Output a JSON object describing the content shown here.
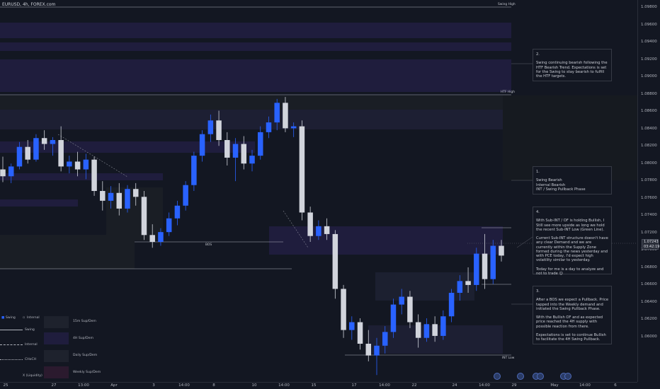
{
  "symbol": "EURUSD, 4h, FOREX.com",
  "price_axis": {
    "ticks": [
      "1.09800",
      "1.09600",
      "1.09400",
      "1.09200",
      "1.09000",
      "1.08800",
      "1.08600",
      "1.08400",
      "1.08200",
      "1.08000",
      "1.07800",
      "1.07600",
      "1.07400",
      "1.07200",
      "1.07000",
      "1.06800",
      "1.06600",
      "1.06400",
      "1.06200",
      "1.06000"
    ],
    "current_price": "1.07243",
    "countdown": "03:42:19"
  },
  "time_axis": {
    "ticks": [
      "25",
      "27",
      "13:00",
      "Apr",
      "3",
      "14:00",
      "8",
      "10",
      "14:00",
      "15",
      "17",
      "14:00",
      "22",
      "24",
      "14:00",
      "29",
      "May",
      "14:00",
      "6"
    ]
  },
  "levels": {
    "swing_high": "Swing High",
    "htf_high": "HTF High",
    "int_low": "INT Low",
    "bos": "BOS"
  },
  "notes": [
    {
      "text": "2.\n\nSwing continuing bearish following the HTF Bearish Trend. Expectations is set for the Swing to stay bearish to fulfill the HTF targets."
    },
    {
      "text": "1.\n\nSwing Bearish\nInternal Bearish\nINT / Swing Pullback Phase"
    },
    {
      "text": "4.\n\nWith Sub-INT / OF is holding Bullish, I Still see more upside as long we hold the recent Sub-INT Low (Green Line).\n\nCurrent Sub-INT structure doesn't have any clear Demand and we are currently within the Supply Zone formed during the news yesterday and with PCE today, I'd expect high volatility similar to yesterday.\n\nToday for me is a day to analyze and not to trade 😊"
    },
    {
      "text": "3.\n\nAfter a BOS we expect a Pullback. Price tapped into the Weekly demand and initiated the Swing Pullback Phase.\n\nWith the Bullish OF and as expected price reached the 4H supply with possible reaction from there.\n\nExpectations is set to continue Bullish to facilitate the 4H Swing Pullback."
    }
  ],
  "legend": {
    "left": [
      "Swing",
      "Internal",
      "Swing",
      "Internal",
      "CHoCH",
      "X (Liquidity)"
    ],
    "right": [
      "15m Sup/Dem",
      "4H Sup/Dem",
      "Daily Sup/Dem",
      "Weekly Sup/Dem"
    ]
  },
  "chart_data": {
    "type": "candlestick",
    "ylim": [
      1.0595,
      1.0985
    ],
    "candles": [
      {
        "o": 1.0812,
        "h": 1.0825,
        "l": 1.0799,
        "c": 1.0805
      },
      {
        "o": 1.0805,
        "h": 1.0818,
        "l": 1.0798,
        "c": 1.0815
      },
      {
        "o": 1.0815,
        "h": 1.084,
        "l": 1.0812,
        "c": 1.0835
      },
      {
        "o": 1.0835,
        "h": 1.0842,
        "l": 1.0818,
        "c": 1.0822
      },
      {
        "o": 1.0822,
        "h": 1.0848,
        "l": 1.082,
        "c": 1.0844
      },
      {
        "o": 1.0844,
        "h": 1.0852,
        "l": 1.0832,
        "c": 1.0838
      },
      {
        "o": 1.0838,
        "h": 1.0845,
        "l": 1.0826,
        "c": 1.0842
      },
      {
        "o": 1.0842,
        "h": 1.0856,
        "l": 1.081,
        "c": 1.0815
      },
      {
        "o": 1.0815,
        "h": 1.0826,
        "l": 1.0808,
        "c": 1.082
      },
      {
        "o": 1.082,
        "h": 1.083,
        "l": 1.0805,
        "c": 1.0812
      },
      {
        "o": 1.0812,
        "h": 1.0828,
        "l": 1.0802,
        "c": 1.0822
      },
      {
        "o": 1.0822,
        "h": 1.0825,
        "l": 1.0785,
        "c": 1.079
      },
      {
        "o": 1.079,
        "h": 1.08,
        "l": 1.077,
        "c": 1.078
      },
      {
        "o": 1.078,
        "h": 1.0795,
        "l": 1.0772,
        "c": 1.0788
      },
      {
        "o": 1.0788,
        "h": 1.0798,
        "l": 1.0765,
        "c": 1.0772
      },
      {
        "o": 1.0772,
        "h": 1.0796,
        "l": 1.0768,
        "c": 1.0792
      },
      {
        "o": 1.0792,
        "h": 1.0798,
        "l": 1.0775,
        "c": 1.0784
      },
      {
        "o": 1.0784,
        "h": 1.079,
        "l": 1.074,
        "c": 1.0745
      },
      {
        "o": 1.0745,
        "h": 1.0756,
        "l": 1.0732,
        "c": 1.0738
      },
      {
        "o": 1.0738,
        "h": 1.0752,
        "l": 1.0734,
        "c": 1.0748
      },
      {
        "o": 1.0748,
        "h": 1.0768,
        "l": 1.0744,
        "c": 1.0762
      },
      {
        "o": 1.0762,
        "h": 1.078,
        "l": 1.0755,
        "c": 1.0775
      },
      {
        "o": 1.0775,
        "h": 1.08,
        "l": 1.077,
        "c": 1.0796
      },
      {
        "o": 1.0796,
        "h": 1.083,
        "l": 1.079,
        "c": 1.0826
      },
      {
        "o": 1.0826,
        "h": 1.0852,
        "l": 1.082,
        "c": 1.0848
      },
      {
        "o": 1.0848,
        "h": 1.0868,
        "l": 1.084,
        "c": 1.0862
      },
      {
        "o": 1.0862,
        "h": 1.0872,
        "l": 1.0836,
        "c": 1.0842
      },
      {
        "o": 1.0842,
        "h": 1.085,
        "l": 1.0816,
        "c": 1.0824
      },
      {
        "o": 1.0824,
        "h": 1.0844,
        "l": 1.08,
        "c": 1.0838
      },
      {
        "o": 1.0838,
        "h": 1.0846,
        "l": 1.0812,
        "c": 1.0818
      },
      {
        "o": 1.0818,
        "h": 1.0832,
        "l": 1.081,
        "c": 1.0826
      },
      {
        "o": 1.0826,
        "h": 1.0856,
        "l": 1.0822,
        "c": 1.085
      },
      {
        "o": 1.085,
        "h": 1.0866,
        "l": 1.0844,
        "c": 1.086
      },
      {
        "o": 1.086,
        "h": 1.0884,
        "l": 1.0852,
        "c": 1.088
      },
      {
        "o": 1.088,
        "h": 1.0886,
        "l": 1.085,
        "c": 1.0854
      },
      {
        "o": 1.0854,
        "h": 1.086,
        "l": 1.0845,
        "c": 1.0856
      },
      {
        "o": 1.0856,
        "h": 1.0862,
        "l": 1.076,
        "c": 1.0768
      },
      {
        "o": 1.0768,
        "h": 1.0774,
        "l": 1.0738,
        "c": 1.0744
      },
      {
        "o": 1.0744,
        "h": 1.076,
        "l": 1.074,
        "c": 1.0754
      },
      {
        "o": 1.0754,
        "h": 1.0762,
        "l": 1.074,
        "c": 1.0746
      },
      {
        "o": 1.0746,
        "h": 1.075,
        "l": 1.068,
        "c": 1.069
      },
      {
        "o": 1.069,
        "h": 1.0694,
        "l": 1.064,
        "c": 1.0648
      },
      {
        "o": 1.0648,
        "h": 1.0662,
        "l": 1.0638,
        "c": 1.0656
      },
      {
        "o": 1.0656,
        "h": 1.066,
        "l": 1.0628,
        "c": 1.0634
      },
      {
        "o": 1.0634,
        "h": 1.0648,
        "l": 1.0616,
        "c": 1.0622
      },
      {
        "o": 1.0622,
        "h": 1.064,
        "l": 1.0602,
        "c": 1.0632
      },
      {
        "o": 1.0632,
        "h": 1.0652,
        "l": 1.0624,
        "c": 1.0646
      },
      {
        "o": 1.0646,
        "h": 1.068,
        "l": 1.064,
        "c": 1.0674
      },
      {
        "o": 1.0674,
        "h": 1.069,
        "l": 1.0664,
        "c": 1.0682
      },
      {
        "o": 1.0682,
        "h": 1.0688,
        "l": 1.065,
        "c": 1.0656
      },
      {
        "o": 1.0656,
        "h": 1.0664,
        "l": 1.063,
        "c": 1.064
      },
      {
        "o": 1.064,
        "h": 1.066,
        "l": 1.0636,
        "c": 1.0654
      },
      {
        "o": 1.0654,
        "h": 1.0662,
        "l": 1.0636,
        "c": 1.0642
      },
      {
        "o": 1.0642,
        "h": 1.0668,
        "l": 1.0638,
        "c": 1.0662
      },
      {
        "o": 1.0662,
        "h": 1.069,
        "l": 1.0656,
        "c": 1.0686
      },
      {
        "o": 1.0686,
        "h": 1.0704,
        "l": 1.0678,
        "c": 1.0698
      },
      {
        "o": 1.0698,
        "h": 1.0712,
        "l": 1.0686,
        "c": 1.0694
      },
      {
        "o": 1.0694,
        "h": 1.0732,
        "l": 1.0688,
        "c": 1.0726
      },
      {
        "o": 1.0726,
        "h": 1.0746,
        "l": 1.069,
        "c": 1.07
      },
      {
        "o": 1.07,
        "h": 1.074,
        "l": 1.0695,
        "c": 1.0734
      },
      {
        "o": 1.0734,
        "h": 1.074,
        "l": 1.0718,
        "c": 1.0724
      }
    ]
  }
}
